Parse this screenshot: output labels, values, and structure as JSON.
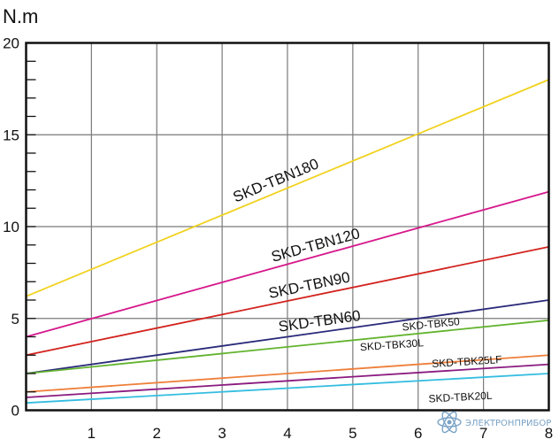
{
  "chart_data": {
    "type": "line",
    "unit_label": "N.m",
    "xlim": [
      0,
      8
    ],
    "ylim": [
      0,
      20
    ],
    "x_ticks": [
      "1",
      "2",
      "3",
      "4",
      "5",
      "6",
      "7",
      "8"
    ],
    "y_ticks": [
      "0",
      "5",
      "10",
      "15",
      "20"
    ],
    "x_tick_values": [
      1,
      2,
      3,
      4,
      5,
      6,
      7,
      8
    ],
    "y_tick_values": [
      0,
      5,
      10,
      15,
      20
    ],
    "grid": true,
    "series": [
      {
        "name": "SKD-TBN180",
        "color": "#f0d21e",
        "x": [
          0,
          8
        ],
        "y": [
          6.2,
          18.0
        ]
      },
      {
        "name": "SKD-TBN120",
        "color": "#d6178c",
        "x": [
          0,
          8
        ],
        "y": [
          4.0,
          11.9
        ]
      },
      {
        "name": "SKD-TBN90",
        "color": "#d2231e",
        "x": [
          0,
          8
        ],
        "y": [
          3.0,
          8.9
        ]
      },
      {
        "name": "SKD-TBN60",
        "color": "#2a2a7a",
        "x": [
          0,
          8
        ],
        "y": [
          2.0,
          6.0
        ]
      },
      {
        "name": "SKD-TBK50",
        "color": "#62b32e",
        "x": [
          0,
          8
        ],
        "y": [
          2.0,
          4.9
        ]
      },
      {
        "name": "SKD-TBK30L",
        "color": "#ee7f3a",
        "x": [
          0,
          8
        ],
        "y": [
          1.0,
          3.0
        ]
      },
      {
        "name": "SKD-TBK25LF",
        "color": "#8a1a7f",
        "x": [
          0,
          8
        ],
        "y": [
          0.7,
          2.5
        ]
      },
      {
        "name": "SKD-TBK20L",
        "color": "#34bde0",
        "x": [
          0,
          8
        ],
        "y": [
          0.4,
          2.0
        ]
      }
    ]
  },
  "watermark": {
    "text": "ЭЛЕКТРОНПРИБОР",
    "icon": "atom-icon"
  }
}
